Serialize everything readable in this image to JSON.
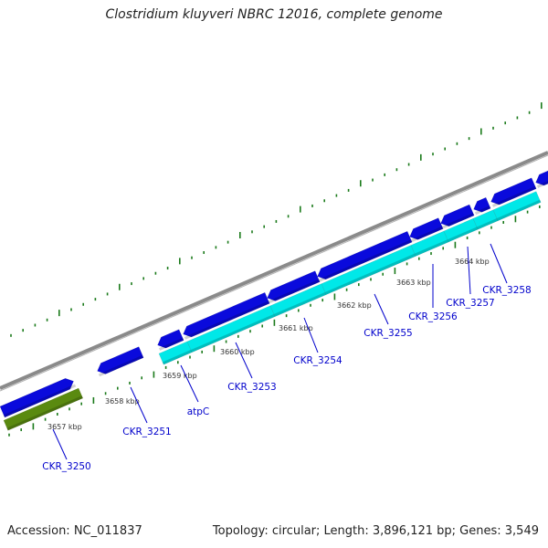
{
  "title": "Clostridium kluyveri NBRC 12016, complete genome",
  "accession": "Accession: NC_011837",
  "summary": "Topology: circular; Length: 3,896,121 bp; Genes: 3,549",
  "colors": {
    "backbone": "#8a8a8a",
    "forward_gene": "#0a0adc",
    "reverse_gene": "#00e8e8",
    "rna_gene": "#5a8a10",
    "ticks": "#1a7a1a",
    "labels": "#0000cc"
  },
  "kbp_labels": [
    "3657 kbp",
    "3658 kbp",
    "3659 kbp",
    "3660 kbp",
    "3661 kbp",
    "3662 kbp",
    "3663 kbp",
    "3664 kbp"
  ],
  "gene_labels": [
    "CKR_3250",
    "CKR_3251",
    "atpC",
    "CKR_3253",
    "CKR_3254",
    "CKR_3255",
    "CKR_3256",
    "CKR_3257",
    "CKR_3258"
  ]
}
